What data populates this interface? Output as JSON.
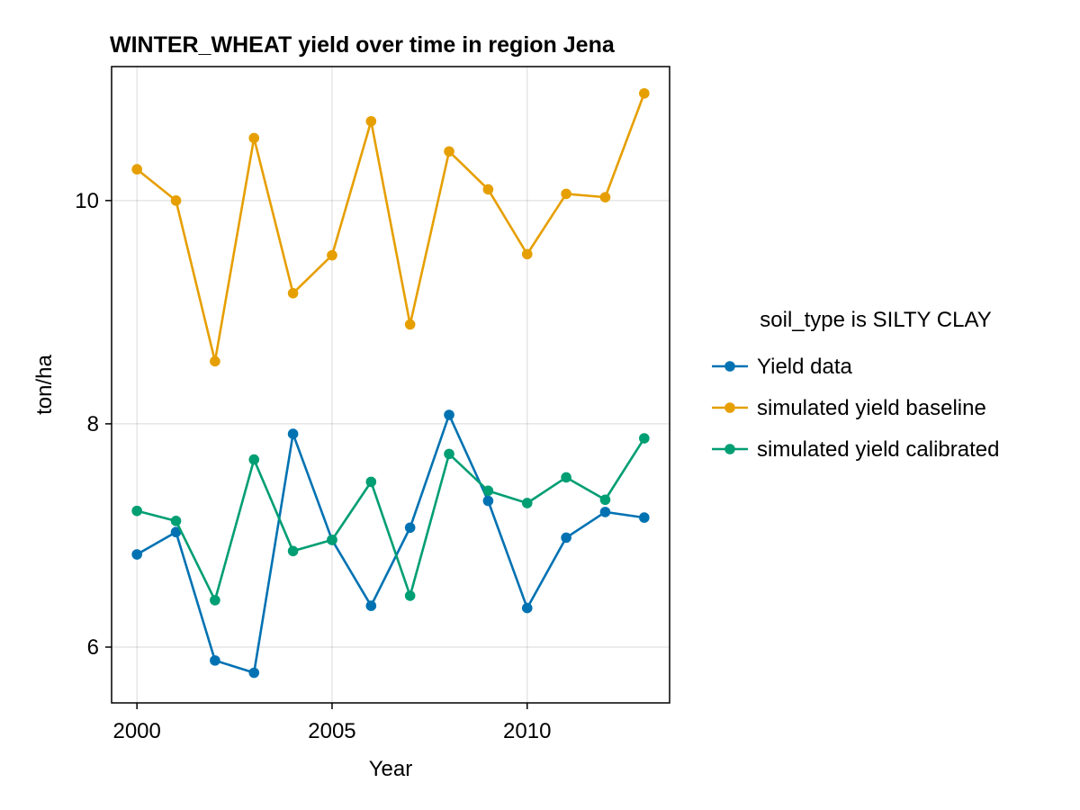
{
  "chart_data": {
    "type": "line",
    "title": "WINTER_WHEAT yield over time in region Jena",
    "xlabel": "Year",
    "ylabel": "ton/ha",
    "xlim": [
      1999.35,
      2013.65
    ],
    "ylim": [
      5.5,
      11.2
    ],
    "xticks": [
      2000,
      2005,
      2010
    ],
    "yticks": [
      6,
      8,
      10
    ],
    "grid": true,
    "legend_title": "soil_type is SILTY CLAY",
    "legend_position": "right",
    "x": [
      2000,
      2001,
      2002,
      2003,
      2004,
      2005,
      2006,
      2007,
      2008,
      2009,
      2010,
      2011,
      2012,
      2013
    ],
    "series": [
      {
        "name": "Yield data",
        "color": "#0072b2",
        "values": [
          6.83,
          7.03,
          5.88,
          5.77,
          7.91,
          6.96,
          6.37,
          7.07,
          8.08,
          7.31,
          6.35,
          6.98,
          7.21,
          7.16
        ]
      },
      {
        "name": "simulated yield baseline",
        "color": "#e69f00",
        "values": [
          10.28,
          10.0,
          8.56,
          10.56,
          9.17,
          9.51,
          10.71,
          8.89,
          10.44,
          10.1,
          9.52,
          10.06,
          10.03,
          10.96
        ]
      },
      {
        "name": "simulated yield calibrated",
        "color": "#009e73",
        "values": [
          7.22,
          7.13,
          6.42,
          7.68,
          6.86,
          6.96,
          7.48,
          6.46,
          7.73,
          7.4,
          7.29,
          7.52,
          7.32,
          7.87
        ]
      }
    ]
  }
}
